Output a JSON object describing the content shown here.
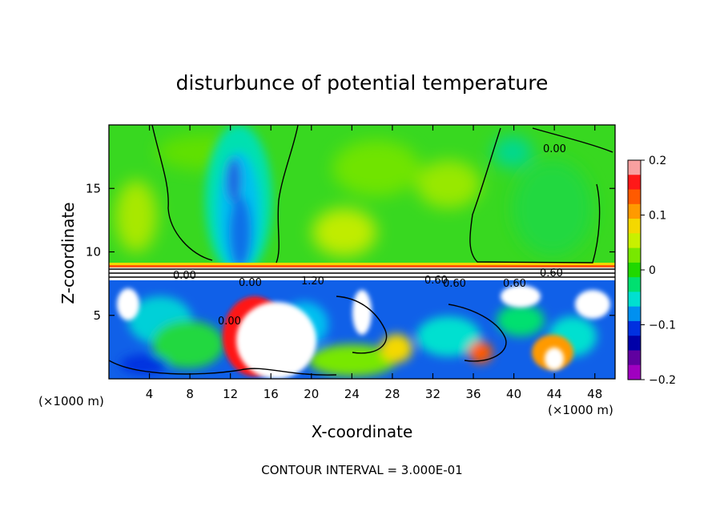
{
  "chart_data": {
    "type": "heatmap",
    "title": "disturbunce of potential temperature",
    "xlabel": "X-coordinate",
    "ylabel": "Z-coordinate",
    "x_unit": "(×1000 m)",
    "x_unit_right": "(×1000 m)",
    "xlim": [
      0,
      50
    ],
    "ylim": [
      0,
      20
    ],
    "x_ticks": [
      4,
      8,
      12,
      16,
      20,
      24,
      28,
      32,
      36,
      40,
      44,
      48
    ],
    "y_ticks": [
      5,
      10,
      15
    ],
    "colorbar": {
      "range": [
        -0.2,
        0.2
      ],
      "tick_values": [
        0.2,
        0.1,
        0,
        -0.1,
        -0.2
      ],
      "tick_labels": [
        "0.2",
        "0.1",
        "0",
        "−0.1",
        "−0.2"
      ],
      "colors": [
        "#f8a0a0",
        "#ff1818",
        "#ff5a00",
        "#ff9a00",
        "#f4d800",
        "#c8f000",
        "#78e800",
        "#20d800",
        "#00e070",
        "#00e0d0",
        "#0090f0",
        "#0030e0",
        "#0000a8",
        "#6000a0",
        "#a000c0"
      ]
    },
    "contour_labels": [
      "0.00",
      "0.60",
      "0.60",
      "0.00",
      "0.00",
      "1.20",
      "0.60",
      "0.60",
      "0.00"
    ],
    "footnote": "CONTOUR INTERVAL = 3.000E-01"
  }
}
